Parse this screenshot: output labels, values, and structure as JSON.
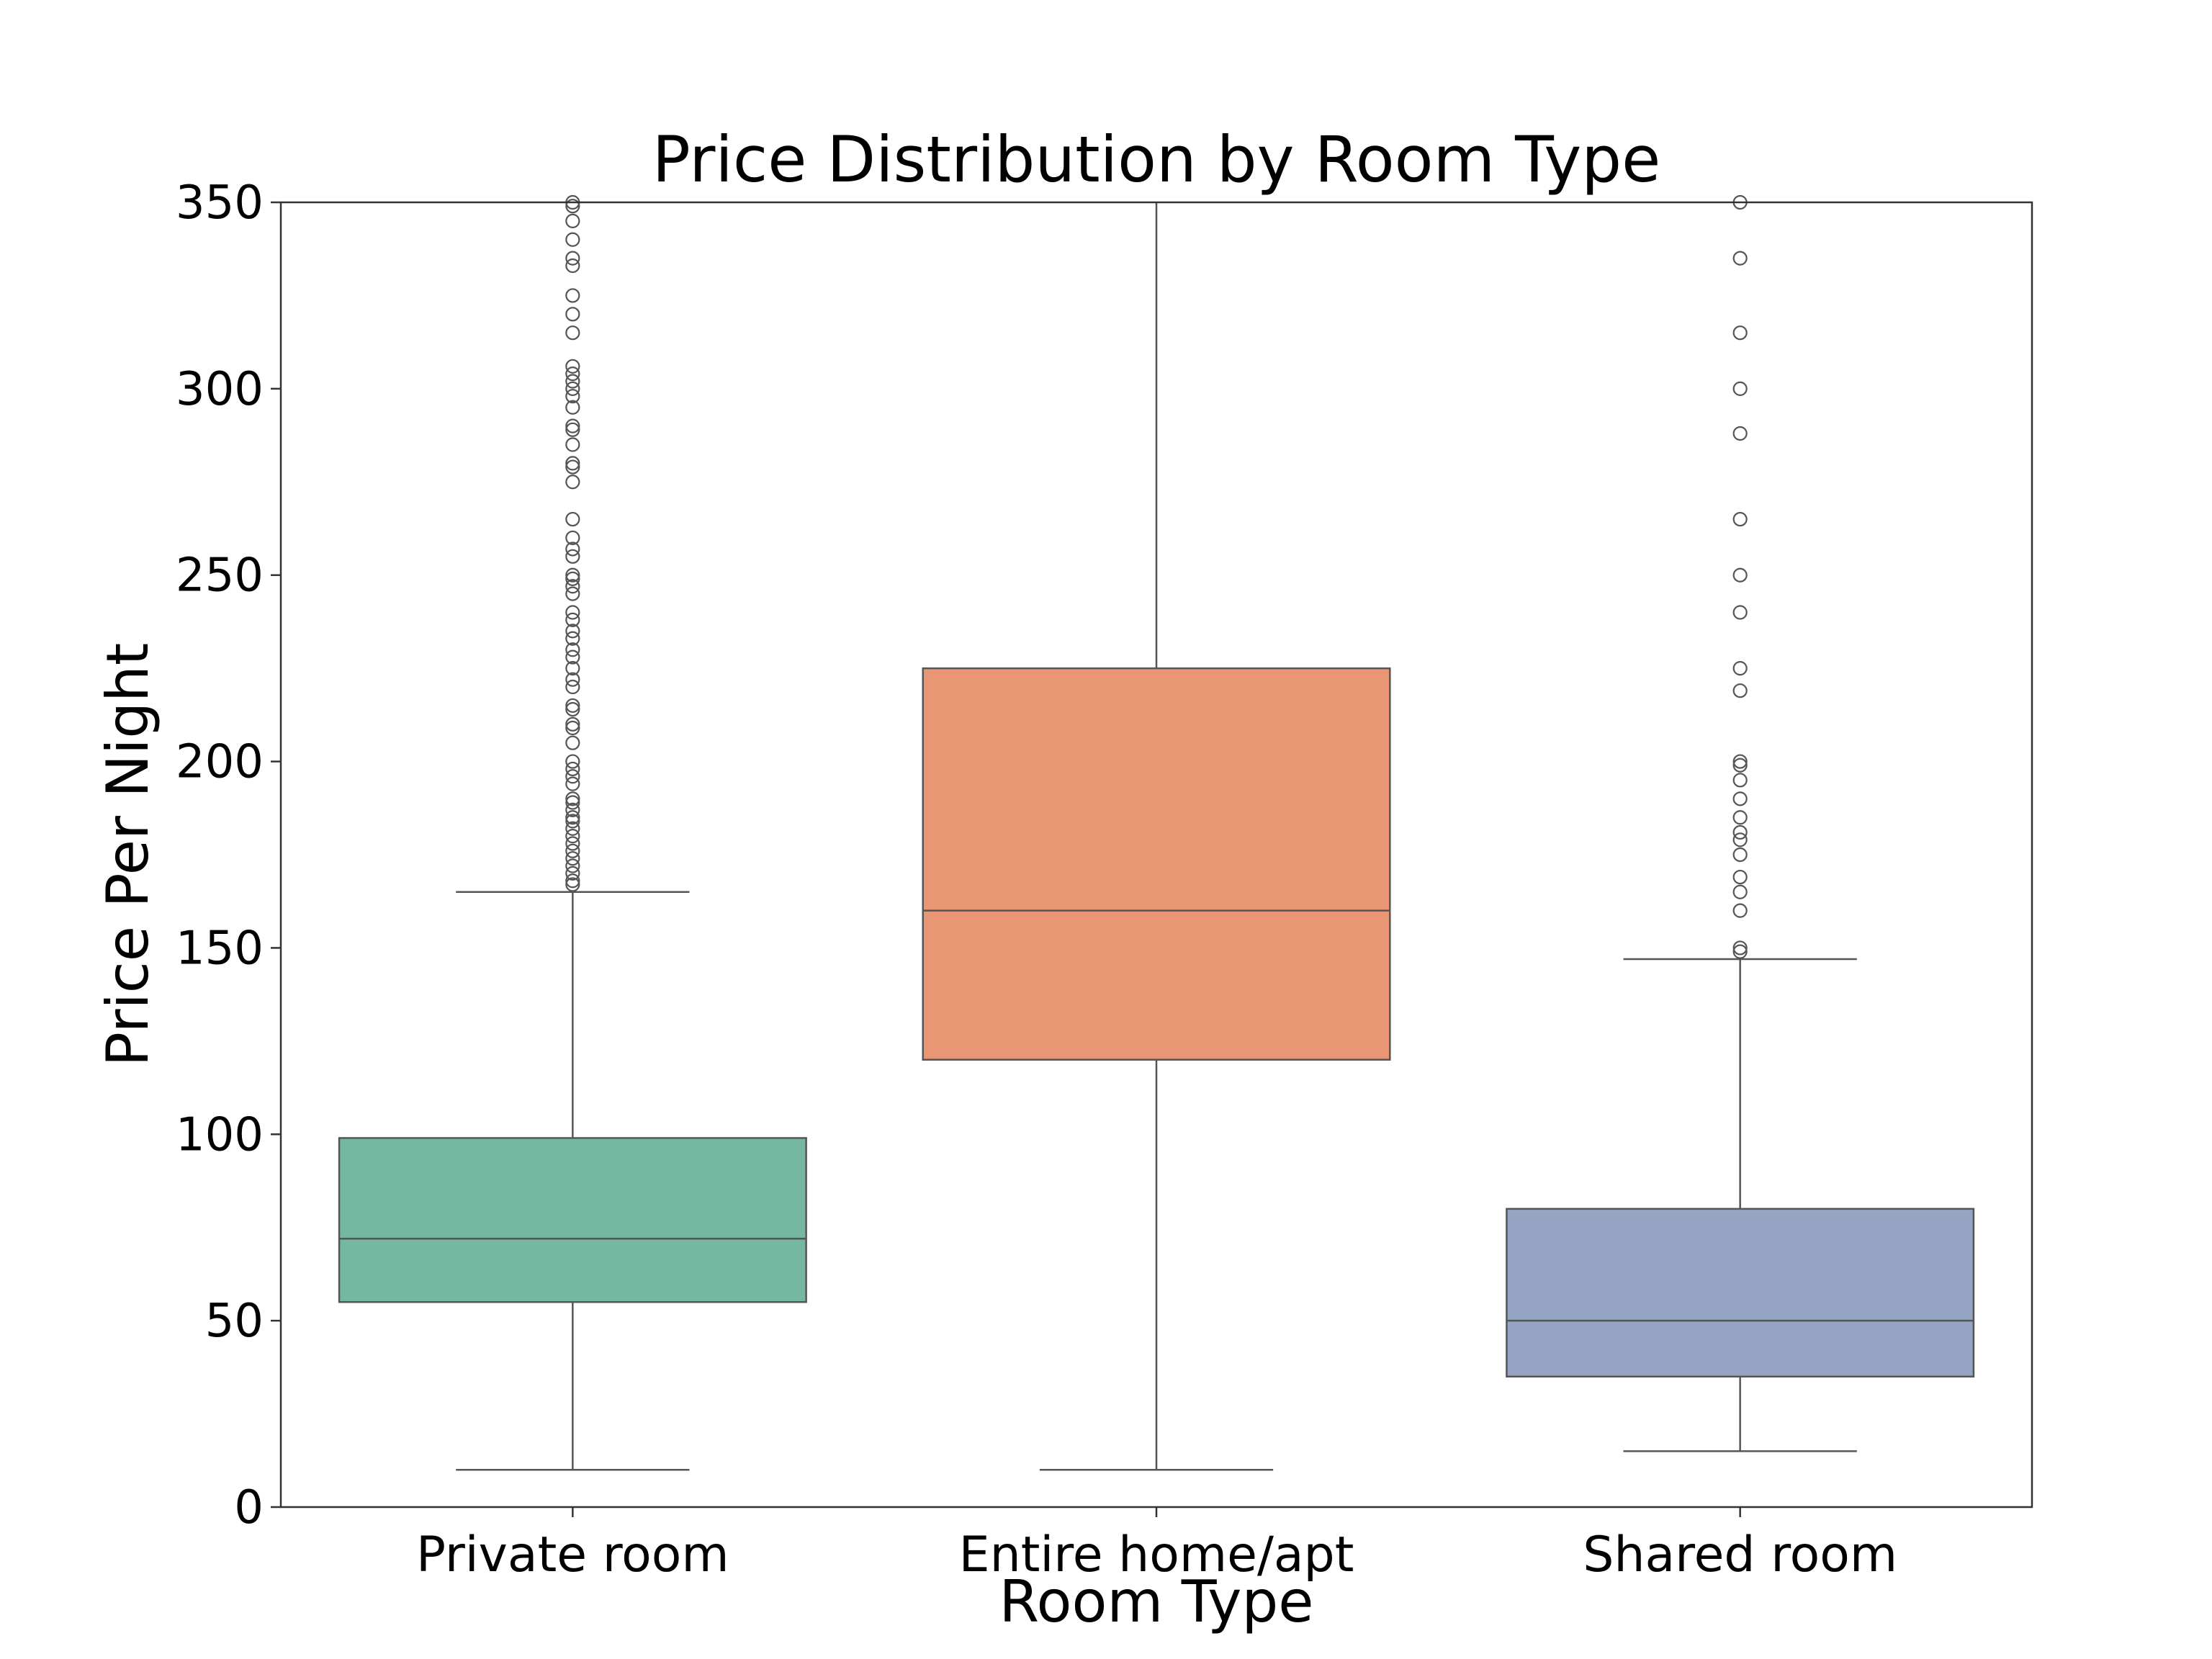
{
  "chart_data": {
    "type": "box",
    "title": "Price Distribution by Room Type",
    "xlabel": "Room Type",
    "ylabel": "Price Per Night",
    "ylim": [
      0,
      350
    ],
    "yticks": [
      0,
      50,
      100,
      150,
      200,
      250,
      300,
      350
    ],
    "grid": false,
    "categories": [
      "Private room",
      "Entire home/apt",
      "Shared room"
    ],
    "boxes": [
      {
        "category": "Private room",
        "color": "#76b7a1",
        "whisker_low": 10,
        "q1": 55,
        "median": 72,
        "q3": 99,
        "whisker_high": 165,
        "outliers": [
          167,
          168,
          170,
          172,
          174,
          176,
          178,
          180,
          182,
          184,
          185,
          187,
          189,
          190,
          194,
          196,
          198,
          200,
          205,
          209,
          210,
          214,
          215,
          220,
          222,
          225,
          228,
          230,
          233,
          235,
          238,
          240,
          245,
          247,
          249,
          250,
          255,
          257,
          260,
          265,
          275,
          279,
          280,
          285,
          289,
          290,
          295,
          298,
          300,
          302,
          304,
          306,
          315,
          320,
          325,
          333,
          335,
          340,
          345,
          349,
          350
        ]
      },
      {
        "category": "Entire home/apt",
        "color": "#e89674",
        "whisker_low": 10,
        "q1": 120,
        "median": 160,
        "q3": 225,
        "whisker_high": 350,
        "outliers": []
      },
      {
        "category": "Shared room",
        "color": "#95a4c3",
        "whisker_low": 15,
        "q1": 35,
        "median": 50,
        "q3": 80,
        "whisker_high": 147,
        "outliers": [
          149,
          150,
          160,
          165,
          169,
          175,
          179,
          181,
          185,
          190,
          195,
          199,
          200,
          219,
          225,
          240,
          250,
          265,
          288,
          300,
          315,
          335,
          350
        ]
      }
    ]
  }
}
